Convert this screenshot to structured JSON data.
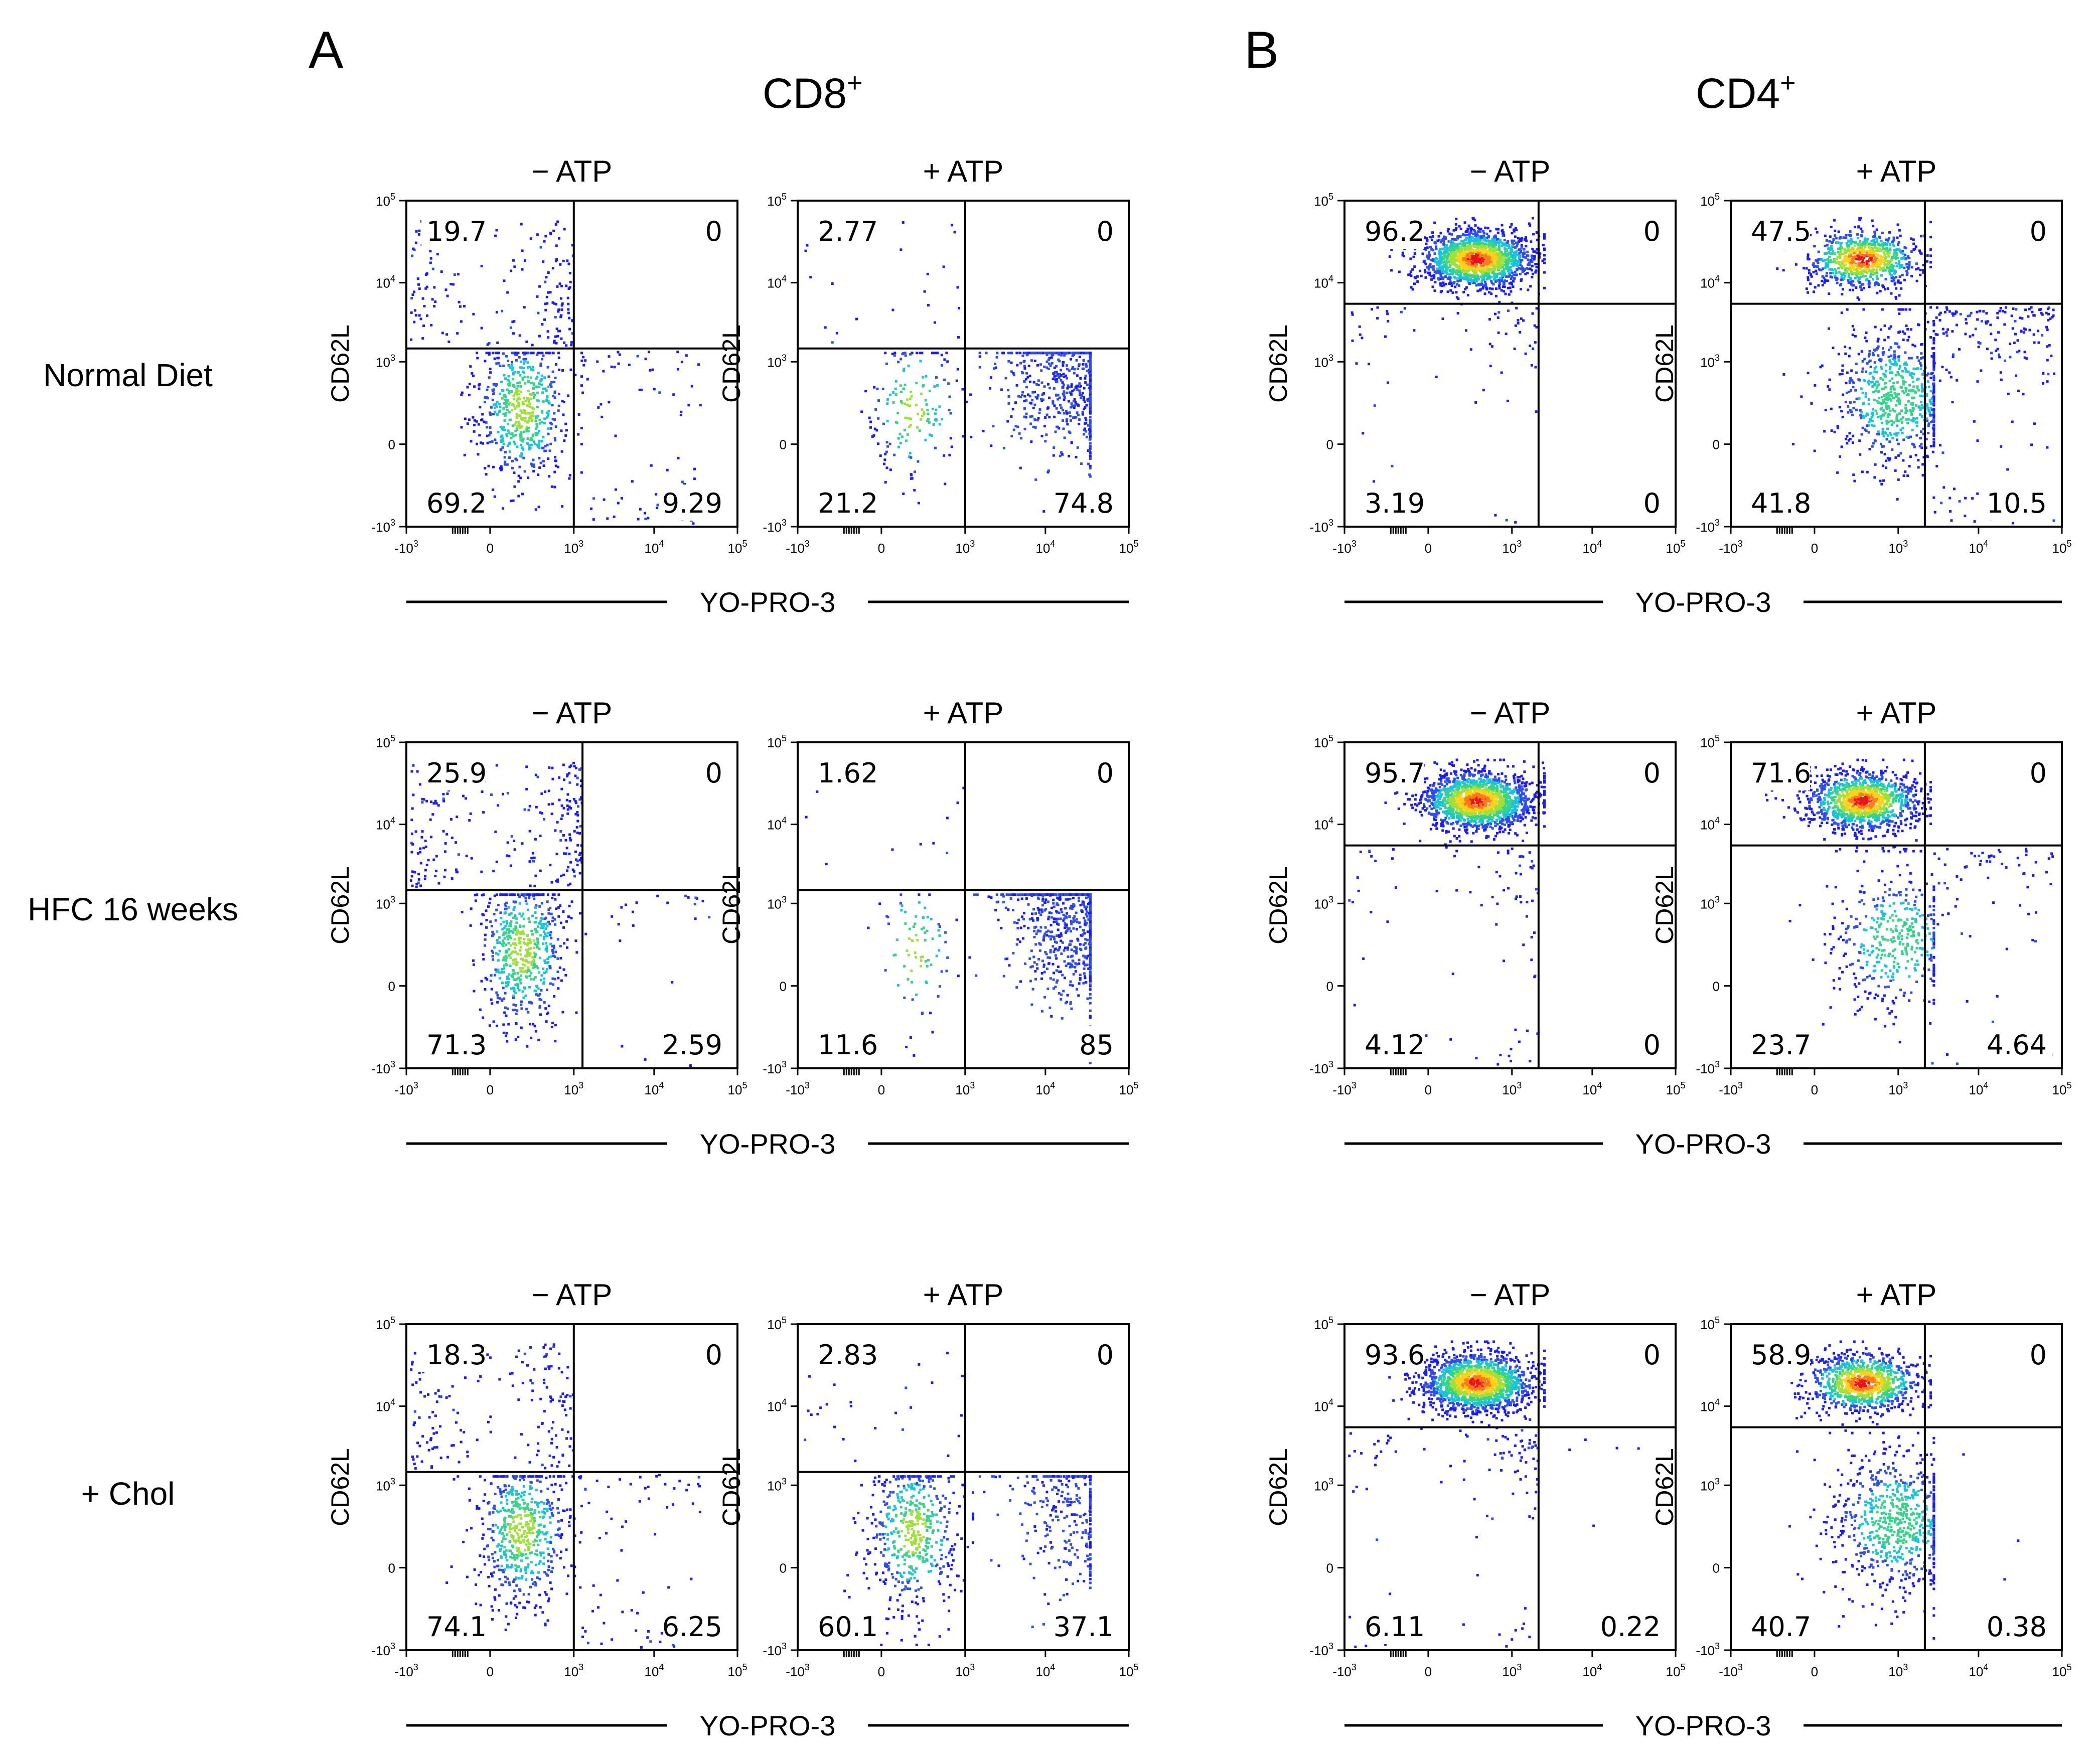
{
  "figure": {
    "panel_a": {
      "letter": "A",
      "subtitle": "CD8",
      "superscript": "+"
    },
    "panel_b": {
      "letter": "B",
      "subtitle": "CD4",
      "superscript": "+"
    },
    "row_labels": [
      "Normal Diet",
      "HFC 16 weeks",
      "+ Chol"
    ],
    "condition_labels": [
      "− ATP",
      "+ ATP"
    ],
    "x_axis_label": "YO-PRO-3",
    "y_axis_label": "CD62L",
    "x_ticks": [
      "-10",
      "0",
      "10",
      "10",
      "10"
    ],
    "x_tick_exponents": [
      "3",
      "",
      "3",
      "4",
      "5"
    ],
    "y_ticks": [
      "10",
      "10",
      "10",
      "0",
      "-10"
    ],
    "y_tick_exponents": [
      "5",
      "4",
      "3",
      "",
      "3"
    ],
    "colors": {
      "sparse": "#1a1aff",
      "medium": "#19c3d8",
      "dense": "#58d84a",
      "peak": "#ff7a1a",
      "hot": "#e8141a"
    }
  },
  "chart_data": [
    {
      "type": "scatter",
      "panel": "A",
      "population": "CD8+",
      "diet": "Normal Diet",
      "condition": "− ATP",
      "xlabel": "YO-PRO-3",
      "ylabel": "CD62L",
      "xlim": [
        -1000,
        100000
      ],
      "ylim": [
        -1000,
        100000
      ],
      "quadrants": {
        "upper_left": "19.7",
        "upper_right": "0",
        "lower_left": "69.2",
        "lower_right": "9.29"
      }
    },
    {
      "type": "scatter",
      "panel": "A",
      "population": "CD8+",
      "diet": "Normal Diet",
      "condition": "+ ATP",
      "xlabel": "YO-PRO-3",
      "ylabel": "CD62L",
      "xlim": [
        -1000,
        100000
      ],
      "ylim": [
        -1000,
        100000
      ],
      "quadrants": {
        "upper_left": "2.77",
        "upper_right": "0",
        "lower_left": "21.2",
        "lower_right": "74.8"
      }
    },
    {
      "type": "scatter",
      "panel": "B",
      "population": "CD4+",
      "diet": "Normal Diet",
      "condition": "− ATP",
      "xlabel": "YO-PRO-3",
      "ylabel": "CD62L",
      "xlim": [
        -1000,
        100000
      ],
      "ylim": [
        -1000,
        100000
      ],
      "quadrants": {
        "upper_left": "96.2",
        "upper_right": "0",
        "lower_left": "3.19",
        "lower_right": "0"
      }
    },
    {
      "type": "scatter",
      "panel": "B",
      "population": "CD4+",
      "diet": "Normal Diet",
      "condition": "+ ATP",
      "xlabel": "YO-PRO-3",
      "ylabel": "CD62L",
      "xlim": [
        -1000,
        100000
      ],
      "ylim": [
        -1000,
        100000
      ],
      "quadrants": {
        "upper_left": "47.5",
        "upper_right": "0",
        "lower_left": "41.8",
        "lower_right": "10.5"
      }
    },
    {
      "type": "scatter",
      "panel": "A",
      "population": "CD8+",
      "diet": "HFC 16 weeks",
      "condition": "− ATP",
      "xlabel": "YO-PRO-3",
      "ylabel": "CD62L",
      "xlim": [
        -1000,
        100000
      ],
      "ylim": [
        -1000,
        100000
      ],
      "quadrants": {
        "upper_left": "25.9",
        "upper_right": "0",
        "lower_left": "71.3",
        "lower_right": "2.59"
      }
    },
    {
      "type": "scatter",
      "panel": "A",
      "population": "CD8+",
      "diet": "HFC 16 weeks",
      "condition": "+ ATP",
      "xlabel": "YO-PRO-3",
      "ylabel": "CD62L",
      "xlim": [
        -1000,
        100000
      ],
      "ylim": [
        -1000,
        100000
      ],
      "quadrants": {
        "upper_left": "1.62",
        "upper_right": "0",
        "lower_left": "11.6",
        "lower_right": "85"
      }
    },
    {
      "type": "scatter",
      "panel": "B",
      "population": "CD4+",
      "diet": "HFC 16 weeks",
      "condition": "− ATP",
      "xlabel": "YO-PRO-3",
      "ylabel": "CD62L",
      "xlim": [
        -1000,
        100000
      ],
      "ylim": [
        -1000,
        100000
      ],
      "quadrants": {
        "upper_left": "95.7",
        "upper_right": "0",
        "lower_left": "4.12",
        "lower_right": "0"
      }
    },
    {
      "type": "scatter",
      "panel": "B",
      "population": "CD4+",
      "diet": "HFC 16 weeks",
      "condition": "+ ATP",
      "xlabel": "YO-PRO-3",
      "ylabel": "CD62L",
      "xlim": [
        -1000,
        100000
      ],
      "ylim": [
        -1000,
        100000
      ],
      "quadrants": {
        "upper_left": "71.6",
        "upper_right": "0",
        "lower_left": "23.7",
        "lower_right": "4.64"
      }
    },
    {
      "type": "scatter",
      "panel": "A",
      "population": "CD8+",
      "diet": "+ Chol",
      "condition": "− ATP",
      "xlabel": "YO-PRO-3",
      "ylabel": "CD62L",
      "xlim": [
        -1000,
        100000
      ],
      "ylim": [
        -1000,
        100000
      ],
      "quadrants": {
        "upper_left": "18.3",
        "upper_right": "0",
        "lower_left": "74.1",
        "lower_right": "6.25"
      }
    },
    {
      "type": "scatter",
      "panel": "A",
      "population": "CD8+",
      "diet": "+ Chol",
      "condition": "+ ATP",
      "xlabel": "YO-PRO-3",
      "ylabel": "CD62L",
      "xlim": [
        -1000,
        100000
      ],
      "ylim": [
        -1000,
        100000
      ],
      "quadrants": {
        "upper_left": "2.83",
        "upper_right": "0",
        "lower_left": "60.1",
        "lower_right": "37.1"
      }
    },
    {
      "type": "scatter",
      "panel": "B",
      "population": "CD4+",
      "diet": "+ Chol",
      "condition": "− ATP",
      "xlabel": "YO-PRO-3",
      "ylabel": "CD62L",
      "xlim": [
        -1000,
        100000
      ],
      "ylim": [
        -1000,
        100000
      ],
      "quadrants": {
        "upper_left": "93.6",
        "upper_right": "0",
        "lower_left": "6.11",
        "lower_right": "0.22"
      }
    },
    {
      "type": "scatter",
      "panel": "B",
      "population": "CD4+",
      "diet": "+ Chol",
      "condition": "+ ATP",
      "xlabel": "YO-PRO-3",
      "ylabel": "CD62L",
      "xlim": [
        -1000,
        100000
      ],
      "ylim": [
        -1000,
        100000
      ],
      "quadrants": {
        "upper_left": "58.9",
        "upper_right": "0",
        "lower_left": "40.7",
        "lower_right": "0.38"
      }
    }
  ]
}
